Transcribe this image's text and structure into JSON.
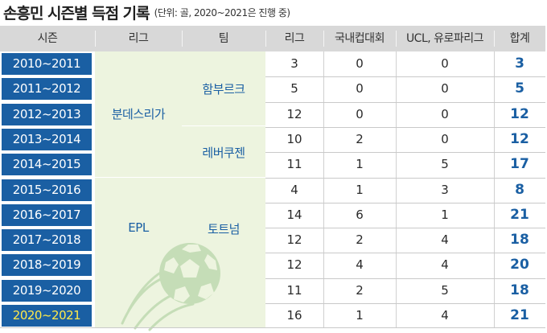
{
  "title": "손흥민 시즌별 득점 기록",
  "subtitle": "(단위: 골, 2020~2021은 진행 중)",
  "headers": [
    "시즌",
    "리그",
    "팀",
    "리그",
    "국내컵대회",
    "UCL, 유로파리그",
    "합계"
  ],
  "leagues": [
    "분데스리가",
    "EPL"
  ],
  "teams": [
    "함부르크",
    "레버쿠젠",
    "토트넘"
  ],
  "rows": [
    {
      "season": "2010~2011",
      "league": "3",
      "cup": "0",
      "europe": "0",
      "total": "3"
    },
    {
      "season": "2011~2012",
      "league": "5",
      "cup": "0",
      "europe": "0",
      "total": "5"
    },
    {
      "season": "2012~2013",
      "league": "12",
      "cup": "0",
      "europe": "0",
      "total": "12"
    },
    {
      "season": "2013~2014",
      "league": "10",
      "cup": "2",
      "europe": "0",
      "total": "12"
    },
    {
      "season": "2014~2015",
      "league": "11",
      "cup": "1",
      "europe": "5",
      "total": "17"
    },
    {
      "season": "2015~2016",
      "league": "4",
      "cup": "1",
      "europe": "3",
      "total": "8"
    },
    {
      "season": "2016~2017",
      "league": "14",
      "cup": "6",
      "europe": "1",
      "total": "21"
    },
    {
      "season": "2017~2018",
      "league": "12",
      "cup": "2",
      "europe": "4",
      "total": "18"
    },
    {
      "season": "2018~2019",
      "league": "12",
      "cup": "4",
      "europe": "4",
      "total": "20"
    },
    {
      "season": "2019~2020",
      "league": "11",
      "cup": "2",
      "europe": "5",
      "total": "18"
    },
    {
      "season": "2020~2021",
      "league": "16",
      "cup": "1",
      "europe": "4",
      "total": "21"
    }
  ],
  "colors": {
    "season_bg": "#1a5fa3",
    "current_season_text": "#ffe94a",
    "header_bg": "#d8d8d8",
    "group_bg": "#edf4df",
    "accent": "#1a5fa3"
  },
  "icons": [
    "soccer-ball-icon"
  ]
}
